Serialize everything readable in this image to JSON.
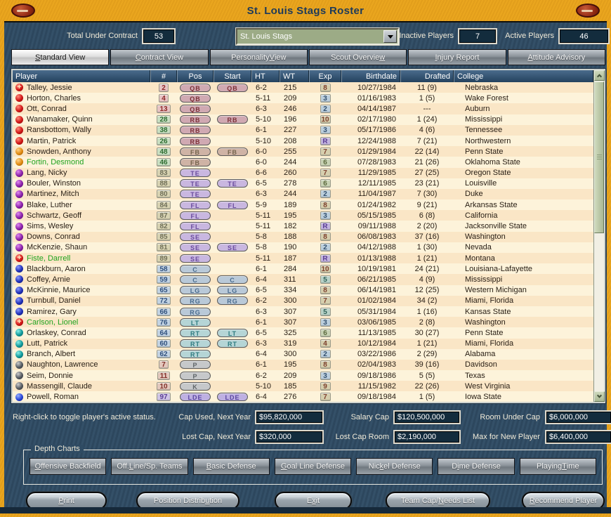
{
  "title": "St. Louis Stags Roster",
  "controls": {
    "total_label": "Total Under Contract",
    "total_value": "53",
    "team_select": "St. Louis Stags",
    "inactive_label": "Inactive Players",
    "inactive_value": "7",
    "active_label": "Active Players",
    "active_value": "46"
  },
  "tabs": [
    {
      "label": "&Standard View",
      "active": true
    },
    {
      "label": "&Contract View",
      "active": false
    },
    {
      "label": "Personality &View",
      "active": false
    },
    {
      "label": "Scout Overvie&w",
      "active": false
    },
    {
      "label": "&Injury Report",
      "active": false
    },
    {
      "label": "&Attitude Advisory",
      "active": false
    }
  ],
  "table": {
    "columns": [
      "Player",
      "#",
      "Pos",
      "Start",
      "HT",
      "WT",
      "Exp",
      "Birthdate",
      "Drafted",
      "College"
    ],
    "rows": [
      {
        "name": "Talley, Jessie",
        "green": false,
        "dot": "red",
        "cross": true,
        "num": "2",
        "numc": "qb",
        "pos": "QB",
        "posc": "backs",
        "start": "QB",
        "ht": "6-2",
        "wt": "215",
        "exp": "8",
        "expc": "tan",
        "bd": "10/27/1984",
        "dr": "11 (9)",
        "college": "Nebraska"
      },
      {
        "name": "Horton, Charles",
        "green": false,
        "dot": "red",
        "cross": false,
        "num": "4",
        "numc": "qb",
        "pos": "QB",
        "posc": "backs",
        "start": "",
        "ht": "5-11",
        "wt": "209",
        "exp": "3",
        "expc": "blue",
        "bd": "01/16/1983",
        "dr": "1 (5)",
        "college": "Wake Forest"
      },
      {
        "name": "Ott, Conrad",
        "green": false,
        "dot": "red",
        "cross": false,
        "num": "13",
        "numc": "qb",
        "pos": "QB",
        "posc": "backs",
        "start": "",
        "ht": "6-3",
        "wt": "246",
        "exp": "2",
        "expc": "blue",
        "bd": "04/14/1987",
        "dr": "---",
        "college": "Auburn"
      },
      {
        "name": "Wanamaker, Quinn",
        "green": false,
        "dot": "red",
        "cross": false,
        "num": "28",
        "numc": "rb",
        "pos": "RB",
        "posc": "backs",
        "start": "RB",
        "ht": "5-10",
        "wt": "196",
        "exp": "10",
        "expc": "tan",
        "bd": "02/17/1980",
        "dr": "1 (24)",
        "college": "Mississippi"
      },
      {
        "name": "Ransbottom, Wally",
        "green": false,
        "dot": "red",
        "cross": false,
        "num": "38",
        "numc": "rb",
        "pos": "RB",
        "posc": "backs",
        "start": "",
        "ht": "6-1",
        "wt": "227",
        "exp": "3",
        "expc": "blue",
        "bd": "05/17/1986",
        "dr": "4 (6)",
        "college": "Tennessee"
      },
      {
        "name": "Martin, Patrick",
        "green": false,
        "dot": "red",
        "cross": false,
        "num": "26",
        "numc": "rb",
        "pos": "RB",
        "posc": "backs",
        "start": "",
        "ht": "5-10",
        "wt": "208",
        "exp": "R",
        "expc": "purple",
        "bd": "12/24/1988",
        "dr": "7 (21)",
        "college": "Northwestern"
      },
      {
        "name": "Snowden, Anthony",
        "green": false,
        "dot": "orange",
        "cross": false,
        "num": "48",
        "numc": "rb",
        "pos": "FB",
        "posc": "fb",
        "start": "FB",
        "ht": "6-0",
        "wt": "255",
        "exp": "7",
        "expc": "tan",
        "bd": "01/29/1984",
        "dr": "22 (14)",
        "college": "Penn State"
      },
      {
        "name": "Fortin, Desmond",
        "green": true,
        "dot": "orange",
        "cross": false,
        "num": "46",
        "numc": "rb",
        "pos": "FB",
        "posc": "fb",
        "start": "",
        "ht": "6-0",
        "wt": "244",
        "exp": "6",
        "expc": "sage",
        "bd": "07/28/1983",
        "dr": "21 (26)",
        "college": "Oklahoma State"
      },
      {
        "name": "Lang, Nicky",
        "green": false,
        "dot": "purple",
        "cross": false,
        "num": "83",
        "numc": "skill",
        "pos": "TE",
        "posc": "recv",
        "start": "",
        "ht": "6-6",
        "wt": "260",
        "exp": "7",
        "expc": "tan",
        "bd": "11/29/1985",
        "dr": "27 (25)",
        "college": "Oregon State"
      },
      {
        "name": "Bouler, Winston",
        "green": false,
        "dot": "purple",
        "cross": false,
        "num": "88",
        "numc": "skill",
        "pos": "TE",
        "posc": "recv",
        "start": "TE",
        "ht": "6-5",
        "wt": "278",
        "exp": "6",
        "expc": "sage",
        "bd": "12/11/1985",
        "dr": "23 (21)",
        "college": "Louisville"
      },
      {
        "name": "Martinez, Mitch",
        "green": false,
        "dot": "purple",
        "cross": false,
        "num": "80",
        "numc": "skill",
        "pos": "TE",
        "posc": "recv",
        "start": "",
        "ht": "6-3",
        "wt": "244",
        "exp": "2",
        "expc": "blue",
        "bd": "11/04/1987",
        "dr": "7 (30)",
        "college": "Duke"
      },
      {
        "name": "Blake, Luther",
        "green": false,
        "dot": "purple",
        "cross": false,
        "num": "84",
        "numc": "skill",
        "pos": "FL",
        "posc": "recv",
        "start": "FL",
        "ht": "5-9",
        "wt": "189",
        "exp": "8",
        "expc": "tan",
        "bd": "01/24/1982",
        "dr": "9 (21)",
        "college": "Arkansas State"
      },
      {
        "name": "Schwartz, Geoff",
        "green": false,
        "dot": "purple",
        "cross": false,
        "num": "87",
        "numc": "skill",
        "pos": "FL",
        "posc": "recv",
        "start": "",
        "ht": "5-11",
        "wt": "195",
        "exp": "3",
        "expc": "blue",
        "bd": "05/15/1985",
        "dr": "6 (8)",
        "college": "California"
      },
      {
        "name": "Sims, Wesley",
        "green": false,
        "dot": "purple",
        "cross": false,
        "num": "82",
        "numc": "skill",
        "pos": "FL",
        "posc": "recv",
        "start": "",
        "ht": "5-11",
        "wt": "182",
        "exp": "R",
        "expc": "purple",
        "bd": "09/11/1988",
        "dr": "2 (20)",
        "college": "Jacksonville State"
      },
      {
        "name": "Downs, Conrad",
        "green": false,
        "dot": "purple",
        "cross": false,
        "num": "85",
        "numc": "skill",
        "pos": "SE",
        "posc": "recv",
        "start": "",
        "ht": "5-8",
        "wt": "188",
        "exp": "8",
        "expc": "tan",
        "bd": "06/08/1983",
        "dr": "37 (16)",
        "college": "Washington"
      },
      {
        "name": "McKenzie, Shaun",
        "green": false,
        "dot": "purple",
        "cross": false,
        "num": "81",
        "numc": "skill",
        "pos": "SE",
        "posc": "recv",
        "start": "SE",
        "ht": "5-8",
        "wt": "190",
        "exp": "2",
        "expc": "blue",
        "bd": "04/12/1988",
        "dr": "1 (30)",
        "college": "Nevada"
      },
      {
        "name": "Fiste, Darrell",
        "green": true,
        "dot": "red",
        "cross": true,
        "num": "89",
        "numc": "skill",
        "pos": "SE",
        "posc": "recv",
        "start": "",
        "ht": "5-11",
        "wt": "187",
        "exp": "R",
        "expc": "purple",
        "bd": "01/13/1988",
        "dr": "1 (21)",
        "college": "Montana"
      },
      {
        "name": "Blackburn, Aaron",
        "green": false,
        "dot": "blue",
        "cross": false,
        "num": "58",
        "numc": "ol",
        "pos": "C",
        "posc": "ol",
        "start": "",
        "ht": "6-1",
        "wt": "284",
        "exp": "10",
        "expc": "tan",
        "bd": "10/19/1981",
        "dr": "24 (21)",
        "college": "Louisiana-Lafayette"
      },
      {
        "name": "Coffey, Arnie",
        "green": false,
        "dot": "blue",
        "cross": false,
        "num": "59",
        "numc": "ol",
        "pos": "C",
        "posc": "ol",
        "start": "C",
        "ht": "6-4",
        "wt": "311",
        "exp": "5",
        "expc": "teal",
        "bd": "06/21/1985",
        "dr": "4 (9)",
        "college": "Mississippi"
      },
      {
        "name": "McKinnie, Maurice",
        "green": false,
        "dot": "blue",
        "cross": false,
        "num": "65",
        "numc": "ol",
        "pos": "LG",
        "posc": "ol",
        "start": "LG",
        "ht": "6-5",
        "wt": "334",
        "exp": "8",
        "expc": "tan",
        "bd": "06/14/1981",
        "dr": "12 (25)",
        "college": "Western Michigan"
      },
      {
        "name": "Turnbull, Daniel",
        "green": false,
        "dot": "blue",
        "cross": false,
        "num": "72",
        "numc": "ol",
        "pos": "RG",
        "posc": "ol",
        "start": "RG",
        "ht": "6-2",
        "wt": "300",
        "exp": "7",
        "expc": "tan",
        "bd": "01/02/1984",
        "dr": "34 (2)",
        "college": "Miami, Florida"
      },
      {
        "name": "Ramirez, Gary",
        "green": false,
        "dot": "blue",
        "cross": false,
        "num": "66",
        "numc": "ol",
        "pos": "RG",
        "posc": "ol",
        "start": "",
        "ht": "6-3",
        "wt": "307",
        "exp": "5",
        "expc": "teal",
        "bd": "05/31/1984",
        "dr": "1 (16)",
        "college": "Kansas State"
      },
      {
        "name": "Carlson, Lionel",
        "green": true,
        "dot": "red",
        "cross": true,
        "num": "76",
        "numc": "ol",
        "pos": "LT",
        "posc": "t",
        "start": "",
        "ht": "6-1",
        "wt": "307",
        "exp": "3",
        "expc": "blue",
        "bd": "03/06/1985",
        "dr": "2 (8)",
        "college": "Washington"
      },
      {
        "name": "Orlaskey, Conrad",
        "green": false,
        "dot": "teal",
        "cross": false,
        "num": "64",
        "numc": "ol",
        "pos": "RT",
        "posc": "t",
        "start": "LT",
        "ht": "6-5",
        "wt": "325",
        "exp": "6",
        "expc": "sage",
        "bd": "11/13/1985",
        "dr": "30 (27)",
        "college": "Penn State"
      },
      {
        "name": "Lutt, Patrick",
        "green": false,
        "dot": "teal",
        "cross": false,
        "num": "60",
        "numc": "ol",
        "pos": "RT",
        "posc": "t",
        "start": "RT",
        "ht": "6-3",
        "wt": "319",
        "exp": "4",
        "expc": "tan",
        "bd": "10/12/1984",
        "dr": "1 (21)",
        "college": "Miami, Florida"
      },
      {
        "name": "Branch, Albert",
        "green": false,
        "dot": "teal",
        "cross": false,
        "num": "62",
        "numc": "ol",
        "pos": "RT",
        "posc": "t",
        "start": "",
        "ht": "6-4",
        "wt": "300",
        "exp": "2",
        "expc": "blue",
        "bd": "03/22/1986",
        "dr": "2 (29)",
        "college": "Alabama"
      },
      {
        "name": "Naughton, Lawrence",
        "green": false,
        "dot": "gray",
        "cross": false,
        "num": "7",
        "numc": "pk",
        "pos": "P",
        "posc": "pk",
        "start": "",
        "ht": "6-1",
        "wt": "195",
        "exp": "8",
        "expc": "tan",
        "bd": "02/04/1983",
        "dr": "39 (16)",
        "college": "Davidson"
      },
      {
        "name": "Seim, Donnie",
        "green": false,
        "dot": "gray",
        "cross": false,
        "num": "11",
        "numc": "pk",
        "pos": "P",
        "posc": "pk",
        "start": "",
        "ht": "6-2",
        "wt": "209",
        "exp": "3",
        "expc": "blue",
        "bd": "09/18/1986",
        "dr": "5 (5)",
        "college": "Texas"
      },
      {
        "name": "Massengill, Claude",
        "green": false,
        "dot": "gray",
        "cross": false,
        "num": "10",
        "numc": "pk",
        "pos": "K",
        "posc": "pk",
        "start": "",
        "ht": "5-10",
        "wt": "185",
        "exp": "9",
        "expc": "tan",
        "bd": "11/15/1982",
        "dr": "22 (26)",
        "college": "West Virginia"
      },
      {
        "name": "Powell, Roman",
        "green": false,
        "dot": "royal",
        "cross": false,
        "num": "97",
        "numc": "de",
        "pos": "LDE",
        "posc": "de",
        "start": "LDE",
        "ht": "6-4",
        "wt": "276",
        "exp": "7",
        "expc": "tan",
        "bd": "09/18/1984",
        "dr": "1 (5)",
        "college": "Iowa State"
      },
      {
        "name": "",
        "green": false,
        "dot": "royal",
        "cross": false,
        "num": "",
        "numc": "de",
        "pos": "",
        "posc": "de",
        "start": "",
        "ht": "",
        "wt": "",
        "exp": "",
        "expc": "tan",
        "bd": "",
        "dr": "",
        "college": ""
      }
    ]
  },
  "footer": {
    "hint": "Right-click to toggle player's active status.",
    "fields": [
      {
        "label": "Cap Used, Next Year",
        "value": "$95,820,000"
      },
      {
        "label": "Salary Cap",
        "value": "$120,500,000"
      },
      {
        "label": "Room Under Cap",
        "value": "$6,000,000"
      },
      {
        "label": "Lost Cap, Next Year",
        "value": "$320,000"
      },
      {
        "label": "Lost Cap Room",
        "value": "$2,190,000"
      },
      {
        "label": "Max for New Player",
        "value": "$6,400,000"
      }
    ]
  },
  "depth_charts": {
    "label": "Depth Charts",
    "buttons": [
      "&Offensive Backfield",
      "Off. &Line/Sp. Teams",
      "&Basic Defense",
      "&Goal Line Defense",
      "Nic&kel Defense",
      "D&ime Defense",
      "Playing &Time"
    ]
  },
  "bottom_buttons": [
    "&Print",
    "Position Distrib&ution",
    "E&xit",
    "Team Cap/&Needs List",
    "&Recommend Player"
  ],
  "palette": {
    "titlebar": "#e9a41d",
    "panel": "#2f4b63",
    "valuebox_bg": "#132c3d",
    "row_odd": "#fae6c6",
    "row_even": "#fdf3da",
    "header": "#24425e",
    "inactive_player_name": "#1fa31f",
    "dots": {
      "red": "#d01515",
      "orange": "#e08a10",
      "purple": "#8a20a8",
      "blue": "#2030b8",
      "teal": "#10989a",
      "gray": "#555a60",
      "royal": "#2846d8"
    },
    "injury_cross_dot": "red-with-plus",
    "scrollbar": {
      "thumb": "#b5c4a2",
      "track": "#f1efe4"
    }
  }
}
